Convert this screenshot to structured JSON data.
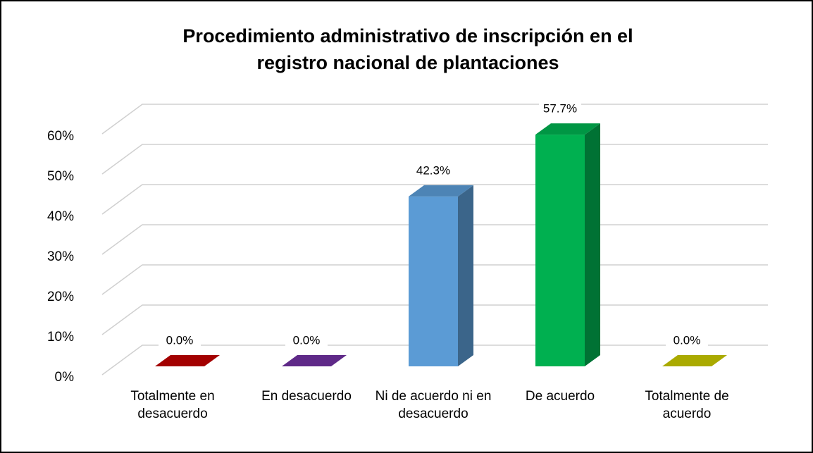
{
  "chart_data": {
    "type": "bar3d",
    "title": "Procedimiento administrativo de inscripción en el registro nacional de plantaciones",
    "categories": [
      "Totalmente en desacuerdo",
      "En desacuerdo",
      "Ni de acuerdo ni en desacuerdo",
      "De acuerdo",
      "Totalmente de acuerdo"
    ],
    "values": [
      0,
      0,
      42.3,
      57.7,
      0
    ],
    "value_labels": [
      "0.0%",
      "0.0%",
      "42.3%",
      "57.7%",
      "0.0%"
    ],
    "colors": [
      "#c00000",
      "#7030a0",
      "#5b9bd5",
      "#00b050",
      "#c8c800"
    ],
    "ylim": [
      0,
      60
    ],
    "yticks": [
      {
        "value": 0,
        "label": "0%"
      },
      {
        "value": 10,
        "label": "10%"
      },
      {
        "value": 20,
        "label": "20%"
      },
      {
        "value": 30,
        "label": "30%"
      },
      {
        "value": 40,
        "label": "40%"
      },
      {
        "value": 50,
        "label": "50%"
      },
      {
        "value": 60,
        "label": "60%"
      }
    ],
    "grid": true
  }
}
